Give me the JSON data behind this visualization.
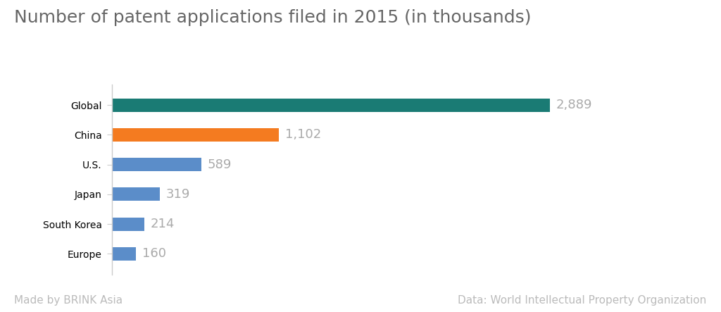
{
  "title": "Number of patent applications filed in 2015 (in thousands)",
  "categories": [
    "Global",
    "China",
    "U.S.",
    "Japan",
    "South Korea",
    "Europe"
  ],
  "values": [
    2889,
    1102,
    589,
    319,
    214,
    160
  ],
  "labels": [
    "2,889",
    "1,102",
    "589",
    "319",
    "214",
    "160"
  ],
  "bar_colors": [
    "#1a7b74",
    "#f47b20",
    "#5b8dc9",
    "#5b8dc9",
    "#5b8dc9",
    "#5b8dc9"
  ],
  "background_color": "#ffffff",
  "title_fontsize": 18,
  "label_fontsize": 13,
  "tick_fontsize": 14,
  "footer_left": "Made by BRINK Asia",
  "footer_right": "Data: World Intellectual Property Organization",
  "footer_fontsize": 11,
  "xlim": [
    0,
    3400
  ]
}
